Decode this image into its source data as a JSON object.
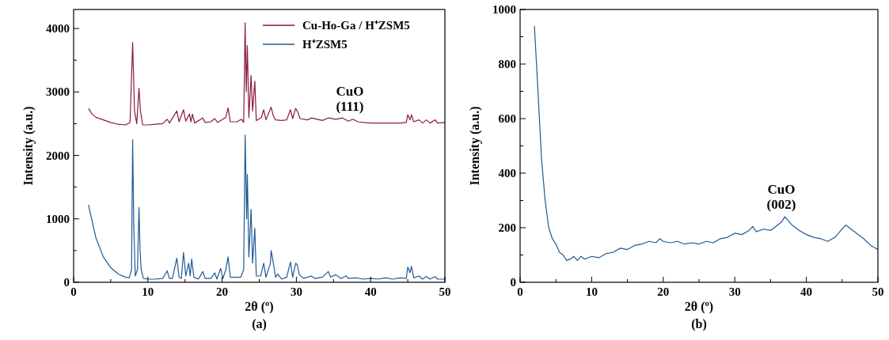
{
  "chart_data": [
    {
      "type": "line",
      "xlabel": "2θ (º)",
      "ylabel": "Intensity (a.u.)",
      "legend": "top right",
      "grid": false,
      "xlim": [
        0,
        50
      ],
      "ylim": [
        0,
        4300
      ],
      "xticks": [
        0,
        {
          "value": 5,
          "label": null
        },
        10,
        {
          "value": 15,
          "label": null
        },
        20,
        {
          "value": 25,
          "label": null
        },
        30,
        {
          "value": 35,
          "label": null
        },
        40,
        {
          "value": 45,
          "label": null
        },
        50
      ],
      "yticks": [
        0,
        {
          "value": 500,
          "label": null
        },
        1000,
        {
          "value": 1500,
          "label": null
        },
        2000,
        {
          "value": 2500,
          "label": null
        },
        3000,
        {
          "value": 3500,
          "label": null
        },
        4000
      ],
      "annotations": [
        "CuO\n(111)",
        "(a)"
      ],
      "series": [
        {
          "name": "Cu-Ho-Ga / H⁺ZSM5",
          "color": "#8b1a3a",
          "x": [
            2,
            2.5,
            3,
            4,
            5,
            6,
            7,
            7.6,
            7.95,
            8.2,
            8.5,
            8.8,
            9.0,
            9.3,
            10,
            11,
            12,
            12.6,
            12.9,
            13.9,
            14.2,
            14.8,
            15.1,
            15.6,
            15.8,
            16.0,
            16.3,
            17.4,
            17.7,
            18.5,
            19.0,
            19.4,
            20.5,
            20.8,
            21.1,
            22.0,
            22.6,
            22.9,
            23.1,
            23.25,
            23.4,
            23.6,
            23.9,
            24.1,
            24.4,
            24.6,
            25.3,
            25.6,
            25.9,
            26.6,
            26.9,
            27.2,
            28.0,
            28.7,
            29.2,
            29.5,
            29.9,
            30.2,
            30.5,
            31.5,
            32,
            33.5,
            34.3,
            35.3,
            36.2,
            37.0,
            37.6,
            38.3,
            39,
            40,
            42,
            44,
            44.8,
            45.0,
            45.3,
            45.5,
            45.8,
            46.5,
            47,
            47.5,
            48,
            48.7,
            49,
            50
          ],
          "values": [
            2740,
            2650,
            2600,
            2560,
            2520,
            2490,
            2480,
            2520,
            3780,
            2700,
            2500,
            3060,
            2700,
            2480,
            2480,
            2490,
            2500,
            2570,
            2510,
            2700,
            2530,
            2720,
            2540,
            2650,
            2530,
            2650,
            2510,
            2590,
            2520,
            2530,
            2580,
            2520,
            2600,
            2750,
            2530,
            2530,
            2570,
            2520,
            4090,
            3000,
            3730,
            2600,
            3260,
            2700,
            3170,
            2550,
            2600,
            2720,
            2560,
            2760,
            2620,
            2560,
            2550,
            2560,
            2720,
            2580,
            2740,
            2680,
            2580,
            2560,
            2590,
            2550,
            2590,
            2570,
            2590,
            2540,
            2570,
            2530,
            2520,
            2510,
            2510,
            2510,
            2520,
            2640,
            2560,
            2640,
            2530,
            2560,
            2510,
            2560,
            2510,
            2560,
            2510,
            2520
          ]
        },
        {
          "name": "H⁺ZSM5",
          "color": "#1f5a96",
          "x": [
            2,
            3,
            4,
            5,
            6,
            7,
            7.5,
            7.8,
            7.95,
            8.1,
            8.3,
            8.6,
            8.8,
            8.95,
            9.1,
            9.4,
            10,
            11,
            12,
            12.6,
            12.9,
            13.3,
            13.9,
            14.2,
            14.5,
            14.8,
            15.1,
            15.5,
            15.7,
            15.9,
            16.2,
            16.8,
            17.4,
            17.7,
            18.5,
            19.0,
            19.3,
            19.8,
            20.1,
            20.5,
            20.8,
            21.1,
            22.0,
            22.5,
            22.9,
            23.1,
            23.3,
            23.4,
            23.6,
            23.9,
            24.1,
            24.4,
            24.6,
            25.2,
            25.6,
            25.9,
            26.5,
            26.6,
            26.9,
            27.2,
            27.5,
            28.0,
            28.7,
            29.2,
            29.5,
            29.9,
            30.1,
            30.4,
            31,
            32,
            32.5,
            33.5,
            34.3,
            34.6,
            35.3,
            36,
            36.7,
            37,
            38,
            39,
            40,
            41,
            42,
            43,
            44,
            44.8,
            45.0,
            45.3,
            45.5,
            45.8,
            46.5,
            47,
            47.5,
            48,
            48.7,
            49,
            50
          ],
          "values": [
            1220,
            700,
            400,
            230,
            130,
            80,
            70,
            200,
            2250,
            900,
            100,
            200,
            1180,
            500,
            200,
            60,
            50,
            50,
            60,
            180,
            60,
            60,
            380,
            80,
            60,
            470,
            100,
            300,
            100,
            370,
            80,
            50,
            170,
            60,
            60,
            150,
            50,
            220,
            60,
            200,
            400,
            80,
            80,
            80,
            200,
            2320,
            1000,
            1700,
            400,
            1150,
            300,
            850,
            100,
            100,
            300,
            80,
            300,
            500,
            300,
            80,
            130,
            50,
            80,
            320,
            80,
            300,
            280,
            120,
            60,
            100,
            60,
            80,
            170,
            80,
            120,
            60,
            100,
            60,
            70,
            50,
            60,
            50,
            70,
            50,
            70,
            60,
            240,
            150,
            250,
            70,
            100,
            50,
            90,
            50,
            90,
            50,
            50
          ]
        }
      ]
    },
    {
      "type": "line",
      "xlabel": "2θ (º)",
      "ylabel": "Intensity (a.u.)",
      "grid": false,
      "xlim": [
        0,
        50
      ],
      "ylim": [
        0,
        1000
      ],
      "xticks": [
        0,
        {
          "value": 5,
          "label": null
        },
        10,
        {
          "value": 15,
          "label": null
        },
        20,
        {
          "value": 25,
          "label": null
        },
        30,
        {
          "value": 35,
          "label": null
        },
        40,
        {
          "value": 45,
          "label": null
        },
        50
      ],
      "yticks": [
        0,
        {
          "value": 100,
          "label": null
        },
        200,
        {
          "value": 300,
          "label": null
        },
        400,
        {
          "value": 500,
          "label": null
        },
        600,
        {
          "value": 700,
          "label": null
        },
        800,
        {
          "value": 900,
          "label": null
        },
        1000
      ],
      "annotations": [
        "CuO\n(002)",
        "(b)"
      ],
      "series": [
        {
          "color": "#1f5a96",
          "x": [
            2,
            2.5,
            3,
            3.5,
            4,
            4.5,
            5,
            5.5,
            6,
            6.5,
            7,
            7.5,
            8,
            8.5,
            9,
            9.5,
            10,
            11,
            12,
            13,
            14,
            15,
            16,
            17,
            18,
            19,
            19.5,
            20,
            21,
            22,
            23,
            24,
            25,
            26,
            27,
            28,
            29,
            30,
            31,
            32,
            32.5,
            33,
            34,
            35,
            36,
            36.5,
            37,
            37.5,
            38,
            39,
            40,
            41,
            42,
            43,
            44,
            45,
            45.5,
            46,
            47,
            48,
            49,
            50
          ],
          "values": [
            940,
            700,
            450,
            300,
            200,
            160,
            140,
            110,
            100,
            80,
            85,
            95,
            80,
            95,
            85,
            90,
            95,
            90,
            105,
            110,
            125,
            120,
            135,
            140,
            150,
            145,
            160,
            150,
            145,
            150,
            140,
            145,
            140,
            150,
            145,
            160,
            165,
            180,
            175,
            190,
            205,
            185,
            195,
            190,
            210,
            220,
            240,
            225,
            210,
            190,
            175,
            165,
            160,
            150,
            165,
            195,
            210,
            200,
            180,
            160,
            135,
            120
          ]
        }
      ]
    }
  ]
}
